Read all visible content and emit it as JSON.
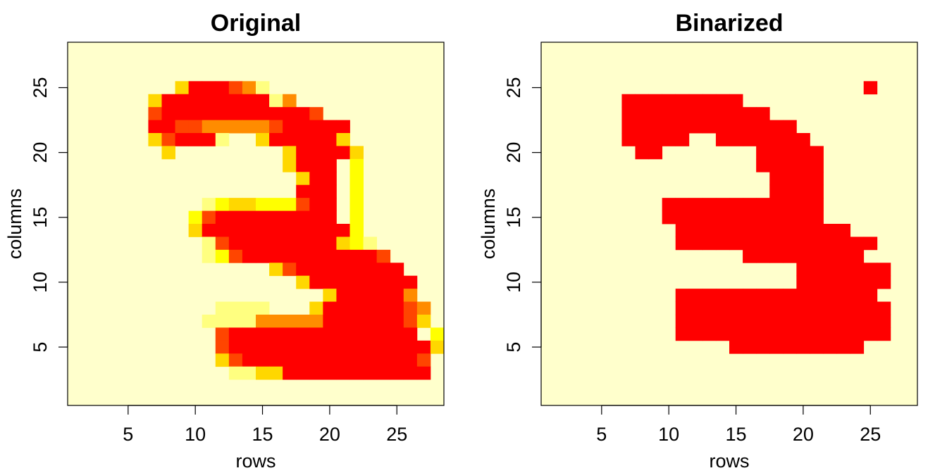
{
  "chart_data": [
    {
      "type": "heatmap",
      "title": "Original",
      "xlabel": "rows",
      "ylabel": "columns",
      "xlim": [
        0.5,
        28.5
      ],
      "ylim": [
        0.5,
        28.5
      ],
      "xticks": [
        5,
        10,
        15,
        20,
        25
      ],
      "yticks": [
        5,
        10,
        15,
        20,
        25
      ],
      "xtick_labels": [
        "5",
        "10",
        "15",
        "20",
        "25"
      ],
      "ytick_labels": [
        "5",
        "10",
        "15",
        "20",
        "25"
      ],
      "background_color": "#FFFFCC",
      "colors": [
        "#FFFFCC",
        "#FFFF80",
        "#FFFF00",
        "#FFD700",
        "#FF8C00",
        "#FF4500",
        "#FF0000"
      ],
      "rows_top_to_bottom": [
        "............................",
        "............................",
        "............................",
        "........3666541.............",
        "......36666666614...........",
        "......5666666666665.........",
        "......665544444566666.......",
        "......356661..3666663.......",
        ".......3........366663......",
        "................3666.2......",
        ".................366.2......",
        ".................666.2......",
        "..........1233222566.2......",
        ".........25666666666.2......",
        ".........3666666666662......",
        "..........1566666666321.....",
        "..........12566666666665....",
        "...............3566666666...",
        ".................366666666..",
        "...................3666664..",
        "...........1111...366666654.",
        "..........11114444466666653.",
        "...........566666666666666.2",
        "...........56666666666666663",
        "...........3566666666666665.",
        "............113366666666666.",
        "............................",
        "............................"
      ]
    },
    {
      "type": "heatmap",
      "title": "Binarized",
      "xlabel": "rows",
      "ylabel": "columns",
      "xlim": [
        0.5,
        28.5
      ],
      "ylim": [
        0.5,
        28.5
      ],
      "xticks": [
        5,
        10,
        15,
        20,
        25
      ],
      "yticks": [
        5,
        10,
        15,
        20,
        25
      ],
      "xtick_labels": [
        "5",
        "10",
        "15",
        "20",
        "25"
      ],
      "ytick_labels": [
        "5",
        "10",
        "15",
        "20",
        "25"
      ],
      "background_color": "#FFFFCC",
      "colors": [
        "#FFFFCC",
        "#FF0000"
      ],
      "rows_top_to_bottom": [
        "............................",
        "............................",
        "............................",
        "........................1...",
        "......111111111.............",
        "......11111111111...........",
        "......1111111111111.........",
        "......11111..1111111........",
        ".......11.......11111.......",
        "................11111.......",
        ".................1111.......",
        ".................1111.......",
        ".........111111111111.......",
        ".........111111111111.......",
        "..........1111111111111.....",
        "..........111111111111111...",
        "...............111111111....",
        "...................1111111..",
        "...................1111111..",
        "..........111111111111111...",
        "..........1111111111111111..",
        "..........1111111111111111..",
        "..........1111111111111111..",
        "..............1111111111....",
        "............................",
        "............................",
        "............................",
        "............................"
      ]
    }
  ]
}
